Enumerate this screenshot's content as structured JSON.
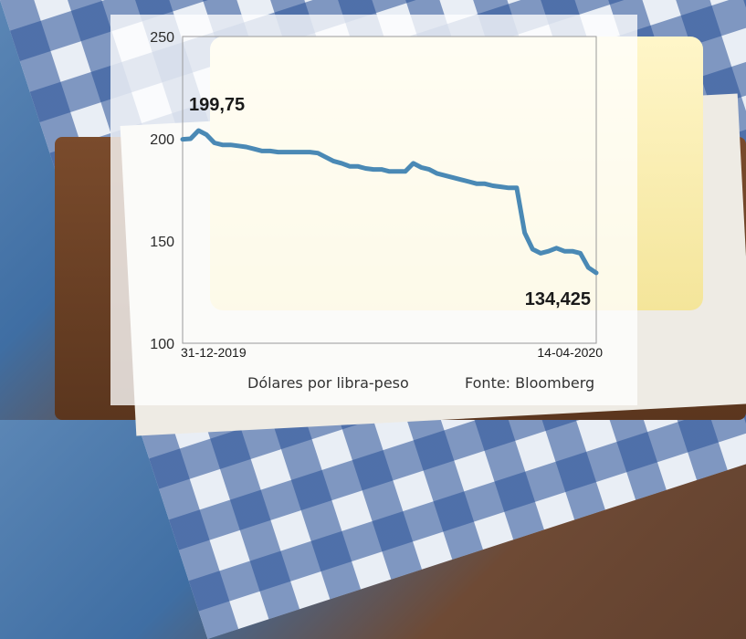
{
  "chart_data": {
    "type": "line",
    "ylabel": "",
    "xlabel": "",
    "y_ticks": [
      "250",
      "200",
      "150",
      "100"
    ],
    "ylim": [
      100,
      250
    ],
    "x_labels": [
      "31-12-2019",
      "14-04-2020"
    ],
    "annotations": [
      {
        "text": "199,75",
        "point": "first"
      },
      {
        "text": "134,425",
        "point": "last"
      }
    ],
    "series": [
      {
        "color": "#4a89b5",
        "values": [
          199.75,
          200,
          204,
          202,
          198,
          197,
          197,
          196.5,
          196,
          195,
          194,
          194,
          193.5,
          193.5,
          193.5,
          193.5,
          193.5,
          193,
          191,
          189,
          188,
          186.5,
          186.5,
          185.5,
          185,
          185,
          184,
          184,
          184,
          188,
          186,
          185,
          183,
          182,
          181,
          180,
          179,
          178,
          178,
          177,
          176.5,
          176,
          176,
          154,
          146,
          144,
          145,
          146.5,
          145,
          145,
          144,
          137,
          134.425
        ]
      }
    ]
  },
  "footer": {
    "units": "Dólares por libra-peso",
    "source": "Fonte: Bloomberg"
  },
  "colors": {
    "line": "#4a89b5",
    "panel": "#ffffff"
  }
}
